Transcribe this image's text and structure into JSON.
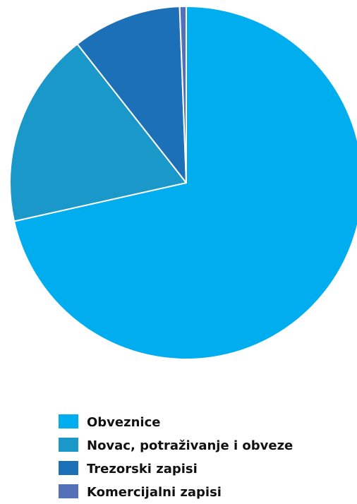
{
  "chart_data": {
    "type": "pie",
    "title": "",
    "legend_position": "bottom",
    "slices": [
      {
        "label": "Obveznice",
        "value": 71.5,
        "color": "#00adef"
      },
      {
        "label": "Novac, potraživanje i obveze",
        "value": 17.9,
        "color": "#1a98c9"
      },
      {
        "label": "Trezorski zapisi",
        "value": 10.0,
        "color": "#1c70b8"
      },
      {
        "label": "Komercijalni zapisi",
        "value": 0.6,
        "color": "#5470b8"
      }
    ]
  }
}
